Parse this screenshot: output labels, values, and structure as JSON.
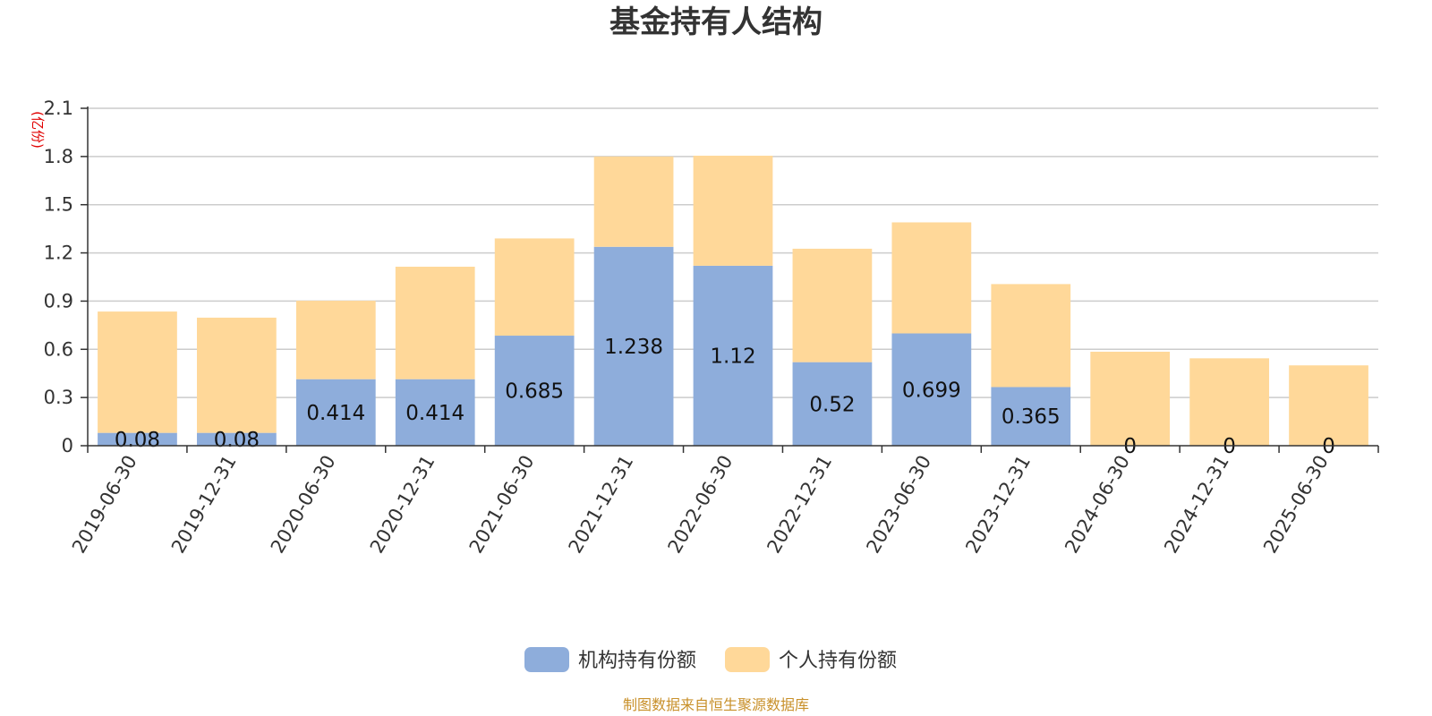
{
  "source_note": "制图数据来自恒生聚源数据库",
  "chart_data": {
    "type": "bar",
    "stacked": true,
    "title": "基金持有人结构",
    "ylabel": "(亿份)",
    "ylim": [
      0,
      2.1
    ],
    "yticks": [
      "0",
      "0.3",
      "0.6",
      "0.9",
      "1.2",
      "1.5",
      "1.8",
      "2.1"
    ],
    "grid": true,
    "legend_position": "bottom-center",
    "categories": [
      "2019-06-30",
      "2019-12-31",
      "2020-06-30",
      "2020-12-31",
      "2021-06-30",
      "2021-12-31",
      "2022-06-30",
      "2022-12-31",
      "2023-06-30",
      "2023-12-31",
      "2024-06-30",
      "2024-12-31",
      "2025-06-30"
    ],
    "series": [
      {
        "name": "机构持有份额",
        "color": "#8eaddb",
        "values": [
          0.08,
          0.08,
          0.414,
          0.414,
          0.685,
          1.238,
          1.12,
          0.52,
          0.699,
          0.365,
          0,
          0,
          0
        ],
        "labels": [
          "0.08",
          "0.08",
          "0.414",
          "0.414",
          "0.685",
          "1.238",
          "1.12",
          "0.52",
          "0.699",
          "0.365",
          "0",
          "0",
          "0"
        ]
      },
      {
        "name": "个人持有份额",
        "color": "#ffd899",
        "values": [
          0.755,
          0.717,
          0.488,
          0.7,
          0.605,
          0.562,
          0.685,
          0.706,
          0.691,
          0.641,
          0.585,
          0.544,
          0.5
        ]
      }
    ]
  }
}
